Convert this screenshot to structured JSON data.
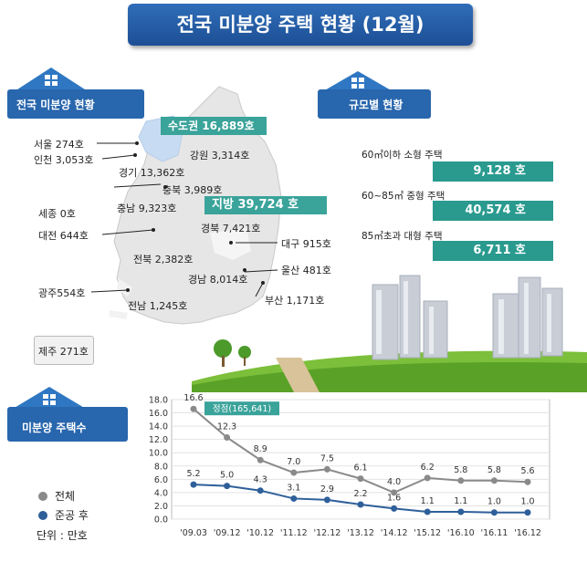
{
  "title": "전국 미분양 주택 현황 (12월)",
  "map_section": {
    "heading": "전국 미분양 현황",
    "capital_tag": "수도권 16,889호",
    "local_tag": "지방 39,724 호",
    "regions": {
      "seoul": "서울 274호",
      "incheon": "인천 3,053호",
      "gyeonggi": "경기 13,362호",
      "gangwon": "강원 3,314호",
      "chungbuk": "충북 3,989호",
      "sejong": "세종 0호",
      "chungnam": "충남 9,323호",
      "daejeon": "대전 644호",
      "gyeongbuk": "경북 7,421호",
      "daegu": "대구 915호",
      "jeonbuk": "전북 2,382호",
      "ulsan": "울산 481호",
      "gyeongnam": "경남 8,014호",
      "gwangju": "광주554호",
      "busan": "부산 1,171호",
      "jeonnam": "전남 1,245호",
      "jeju": "제주 271호"
    }
  },
  "size_section": {
    "heading": "규모별 현황",
    "items": [
      {
        "label": "60㎡이하 소형 주택",
        "value": "9,128 호"
      },
      {
        "label": "60~85㎡ 중형 주택",
        "value": "40,574 호"
      },
      {
        "label": "85㎡초과 대형 주택",
        "value": "6,711 호"
      }
    ]
  },
  "trend_section": {
    "heading": "미분양 주택수",
    "legend": [
      {
        "name": "전체",
        "color": "#8a8a8a"
      },
      {
        "name": "준공 후",
        "color": "#2e5f9a"
      }
    ],
    "unit": "단위 : 만호"
  },
  "chart_data": {
    "type": "line",
    "categories": [
      "'09.03",
      "'09.12",
      "'10.12",
      "'11.12",
      "'12.12",
      "'13.12",
      "'14.12",
      "'15.12",
      "'16.10",
      "'16.11",
      "'16.12"
    ],
    "series": [
      {
        "name": "전체",
        "values": [
          16.6,
          12.3,
          8.9,
          7.0,
          7.5,
          6.1,
          4.0,
          6.2,
          5.8,
          5.8,
          5.6
        ],
        "color": "#8a8a8a"
      },
      {
        "name": "준공 후",
        "values": [
          5.2,
          5.0,
          4.3,
          3.1,
          2.9,
          2.2,
          1.6,
          1.1,
          1.1,
          1.0,
          1.0
        ],
        "color": "#2e5f9a"
      }
    ],
    "yticks": [
      "18.0",
      "16.0",
      "14.0",
      "12.0",
      "10.0",
      "8.0",
      "6.0",
      "4.0",
      "2.0",
      "0.0"
    ],
    "ylim": [
      0,
      18
    ],
    "annotation": "정점(165,641)",
    "grid": true
  }
}
